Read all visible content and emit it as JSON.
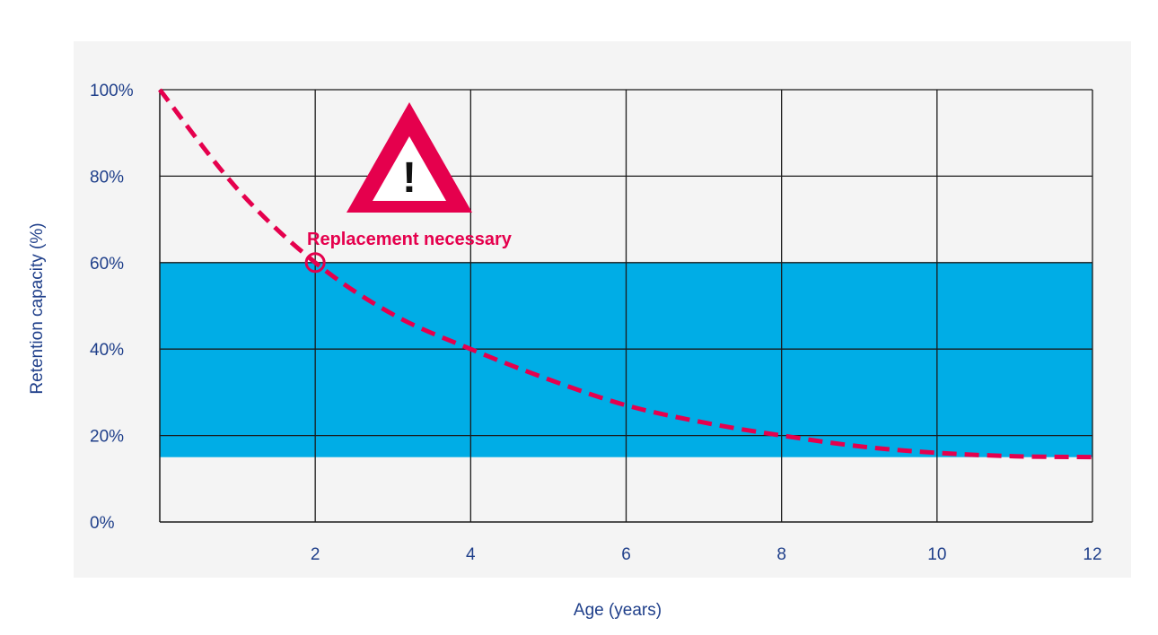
{
  "chart_data": {
    "type": "line",
    "xlabel": "Age (years)",
    "ylabel": "Retention capacity (%)",
    "xlim": [
      0,
      12
    ],
    "ylim": [
      0,
      100
    ],
    "x_ticks": [
      2,
      4,
      6,
      8,
      10,
      12
    ],
    "y_ticks": [
      0,
      20,
      40,
      60,
      80,
      100
    ],
    "y_tick_labels": [
      "0%",
      "20%",
      "40%",
      "60%",
      "80%",
      "100%"
    ],
    "grid": true,
    "band": {
      "from": 15,
      "to": 60,
      "color": "#00ade6"
    },
    "series": [
      {
        "style": "dashed",
        "color": "#e5004d",
        "x": [
          0,
          1,
          2,
          3,
          4,
          5,
          6,
          7,
          8,
          9,
          10,
          11,
          12
        ],
        "y": [
          100,
          77,
          60,
          48,
          40,
          33,
          27,
          23,
          20,
          17.5,
          16,
          15.2,
          15
        ]
      }
    ],
    "annotations": [
      {
        "text": "Replacement necessary",
        "x": 2,
        "y": 60,
        "marker": "circle",
        "icon": "warning-triangle-icon",
        "icon_text": "!"
      }
    ],
    "colors": {
      "plot_background": "#f4f4f4",
      "gridline": "#1a1a1a",
      "text": "#1f3f8a",
      "accent": "#e5004d"
    }
  }
}
